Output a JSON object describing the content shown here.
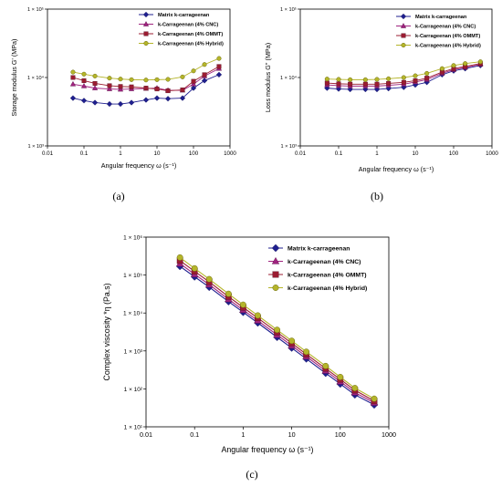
{
  "chart_data": [
    {
      "type": "line",
      "panel_label": "(a)",
      "xlabel": "Angular frequency ω (s⁻¹)",
      "ylabel": "Storage modulus G' (MPa)",
      "xscale": "log",
      "yscale": "log",
      "xlim": [
        0.01,
        1000
      ],
      "ylim": [
        1000,
        100000
      ],
      "x_ticks": [
        "0.01",
        "0.1",
        "1",
        "10",
        "100",
        "1000"
      ],
      "y_ticks": [
        "1 × 10³",
        "1 × 10⁴",
        "1 × 10⁵"
      ],
      "legend_position": "top-right",
      "x": [
        0.05,
        0.1,
        0.2,
        0.5,
        1,
        2,
        5,
        10,
        20,
        50,
        100,
        200,
        500
      ],
      "series": [
        {
          "name": "Matrix k-carrageenan",
          "color": "#1f1f8f",
          "marker": "diamond",
          "values": [
            5000,
            4600,
            4300,
            4100,
            4100,
            4300,
            4700,
            5000,
            4900,
            5000,
            7000,
            9000,
            11000
          ]
        },
        {
          "name": "k-Carrageenan (4% CNC)",
          "color": "#a0237f",
          "marker": "triangle",
          "values": [
            8000,
            7500,
            7000,
            6800,
            6700,
            6800,
            6900,
            7000,
            6500,
            6500,
            8000,
            10500,
            13500
          ]
        },
        {
          "name": "k-Carrageenan (4% OMMT)",
          "color": "#9b1c31",
          "marker": "square",
          "values": [
            10000,
            9000,
            8200,
            7600,
            7400,
            7300,
            7000,
            6800,
            6400,
            6600,
            8800,
            11000,
            14500
          ]
        },
        {
          "name": "k-Carrageenan (4% Hybrid)",
          "color": "#b5b52a",
          "marker": "circle",
          "values": [
            12000,
            11200,
            10500,
            9800,
            9500,
            9300,
            9200,
            9300,
            9400,
            10200,
            12500,
            15500,
            19000
          ]
        }
      ]
    },
    {
      "type": "line",
      "panel_label": "(b)",
      "xlabel": "Angular frequency ω (s⁻¹)",
      "ylabel": "Loss modulus G'' (MPa)",
      "xscale": "log",
      "yscale": "log",
      "xlim": [
        0.01,
        1000
      ],
      "ylim": [
        1000,
        100000
      ],
      "x_ticks": [
        "0.01",
        "0.1",
        "1",
        "10",
        "100",
        "1000"
      ],
      "y_ticks": [
        "1 × 10³",
        "1 × 10⁴",
        "1 × 10⁵"
      ],
      "legend_position": "top-right",
      "x": [
        0.05,
        0.1,
        0.2,
        0.5,
        1,
        2,
        5,
        10,
        20,
        50,
        100,
        200,
        500
      ],
      "series": [
        {
          "name": "Matrix k-carrageenan",
          "color": "#1f1f8f",
          "marker": "diamond",
          "values": [
            7000,
            6800,
            6700,
            6700,
            6700,
            6900,
            7200,
            7800,
            8500,
            11000,
            12500,
            13500,
            15000
          ]
        },
        {
          "name": "k-Carrageenan (4% CNC)",
          "color": "#a0237f",
          "marker": "triangle",
          "values": [
            7800,
            7600,
            7500,
            7500,
            7500,
            7700,
            8000,
            8600,
            9300,
            11500,
            13000,
            14000,
            15500
          ]
        },
        {
          "name": "k-Carrageenan (4% OMMT)",
          "color": "#9b1c31",
          "marker": "square",
          "values": [
            8300,
            8100,
            8000,
            8000,
            8000,
            8200,
            8500,
            9000,
            9800,
            12000,
            13500,
            14500,
            16000
          ]
        },
        {
          "name": "k-Carrageenan (4% Hybrid)",
          "color": "#b5b52a",
          "marker": "circle",
          "values": [
            9500,
            9400,
            9300,
            9300,
            9400,
            9600,
            10000,
            10600,
            11500,
            13500,
            15000,
            16000,
            17000
          ]
        }
      ]
    },
    {
      "type": "line",
      "panel_label": "(c)",
      "xlabel": "Angular frequency ω (s⁻¹)",
      "ylabel": "Complex viscosity *η (Pa.s)",
      "xscale": "log",
      "yscale": "log",
      "xlim": [
        0.01,
        1000
      ],
      "ylim": [
        10,
        1000000
      ],
      "x_ticks": [
        "0.01",
        "0.1",
        "1",
        "10",
        "100",
        "1000"
      ],
      "y_ticks": [
        "1 × 10¹",
        "1 × 10²",
        "1 × 10³",
        "1 × 10⁴",
        "1 × 10⁵",
        "1 × 10⁶"
      ],
      "legend_position": "top-right",
      "x": [
        0.05,
        0.1,
        0.2,
        0.5,
        1,
        2,
        5,
        10,
        20,
        50,
        100,
        200,
        500
      ],
      "series": [
        {
          "name": "Matrix k-carrageenan",
          "color": "#1f1f8f",
          "marker": "diamond",
          "values": [
            170000,
            90000,
            48000,
            20000,
            10500,
            5500,
            2300,
            1200,
            620,
            260,
            135,
            70,
            38
          ]
        },
        {
          "name": "k-Carrageenan (4% CNC)",
          "color": "#a0237f",
          "marker": "triangle",
          "values": [
            200000,
            105000,
            56000,
            23000,
            12000,
            6300,
            2650,
            1380,
            710,
            300,
            155,
            80,
            43
          ]
        },
        {
          "name": "k-Carrageenan (4% OMMT)",
          "color": "#9b1c31",
          "marker": "square",
          "values": [
            240000,
            125000,
            66000,
            27000,
            14000,
            7400,
            3100,
            1600,
            820,
            345,
            178,
            92,
            48
          ]
        },
        {
          "name": "k-Carrageenan (4% Hybrid)",
          "color": "#b5b52a",
          "marker": "circle",
          "values": [
            290000,
            150000,
            78000,
            32000,
            16500,
            8600,
            3600,
            1850,
            950,
            400,
            205,
            105,
            55
          ]
        }
      ]
    }
  ]
}
